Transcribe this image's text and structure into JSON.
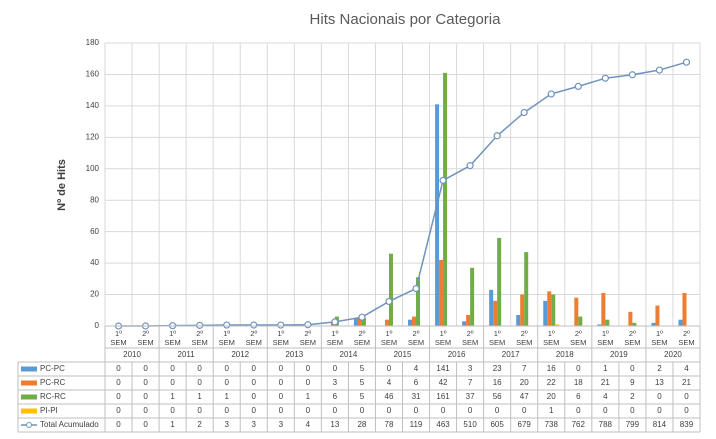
{
  "chart_data": {
    "type": "bar",
    "title": "Hits Nacionais por Categoria",
    "y_label": "Nº de Hits",
    "categories": [
      "1º SEM",
      "2º SEM",
      "1º SEM",
      "2º SEM",
      "1º SEM",
      "2º SEM",
      "1º SEM",
      "2º SEM",
      "1º SEM",
      "2º SEM",
      "1º SEM",
      "2º SEM",
      "1º SEM",
      "2º SEM",
      "1º SEM",
      "2º SEM",
      "1º SEM",
      "2º SEM",
      "1º SEM",
      "2º SEM",
      "1º SEM",
      "2º SEM"
    ],
    "years": [
      "2010",
      "2011",
      "2012",
      "2013",
      "2014",
      "2015",
      "2016",
      "2017",
      "2018",
      "2019",
      "2020"
    ],
    "series": [
      {
        "name": "PC-PC",
        "color": "#5b9bd5",
        "values": [
          0,
          0,
          0,
          0,
          0,
          0,
          0,
          0,
          0,
          5,
          0,
          4,
          141,
          3,
          23,
          7,
          16,
          0,
          1,
          0,
          2,
          4
        ]
      },
      {
        "name": "PC-RC",
        "color": "#ed7d31",
        "values": [
          0,
          0,
          0,
          0,
          0,
          0,
          0,
          0,
          3,
          5,
          4,
          6,
          42,
          7,
          16,
          20,
          22,
          18,
          21,
          9,
          13,
          21
        ]
      },
      {
        "name": "RC-RC",
        "color": "#70ad47",
        "values": [
          0,
          0,
          1,
          1,
          1,
          0,
          0,
          1,
          6,
          5,
          46,
          31,
          161,
          37,
          56,
          47,
          20,
          6,
          4,
          2,
          0,
          0
        ]
      },
      {
        "name": "PI-PI",
        "color": "#ffc000",
        "values": [
          0,
          0,
          0,
          0,
          0,
          0,
          0,
          0,
          0,
          0,
          0,
          0,
          0,
          0,
          0,
          0,
          1,
          0,
          0,
          0,
          0,
          0
        ]
      },
      {
        "name": "Total Acumulado",
        "color": "#6f93bb",
        "type": "line",
        "axis": "y2",
        "values": [
          0,
          0,
          1,
          2,
          3,
          3,
          3,
          4,
          13,
          28,
          78,
          119,
          463,
          510,
          605,
          679,
          738,
          762,
          788,
          799,
          814,
          839
        ]
      }
    ],
    "ylim": [
      0,
      180
    ],
    "yticks": [
      0,
      20,
      40,
      60,
      80,
      100,
      120,
      140,
      160,
      180
    ],
    "y2lim": [
      0,
      900
    ],
    "grid": true
  }
}
